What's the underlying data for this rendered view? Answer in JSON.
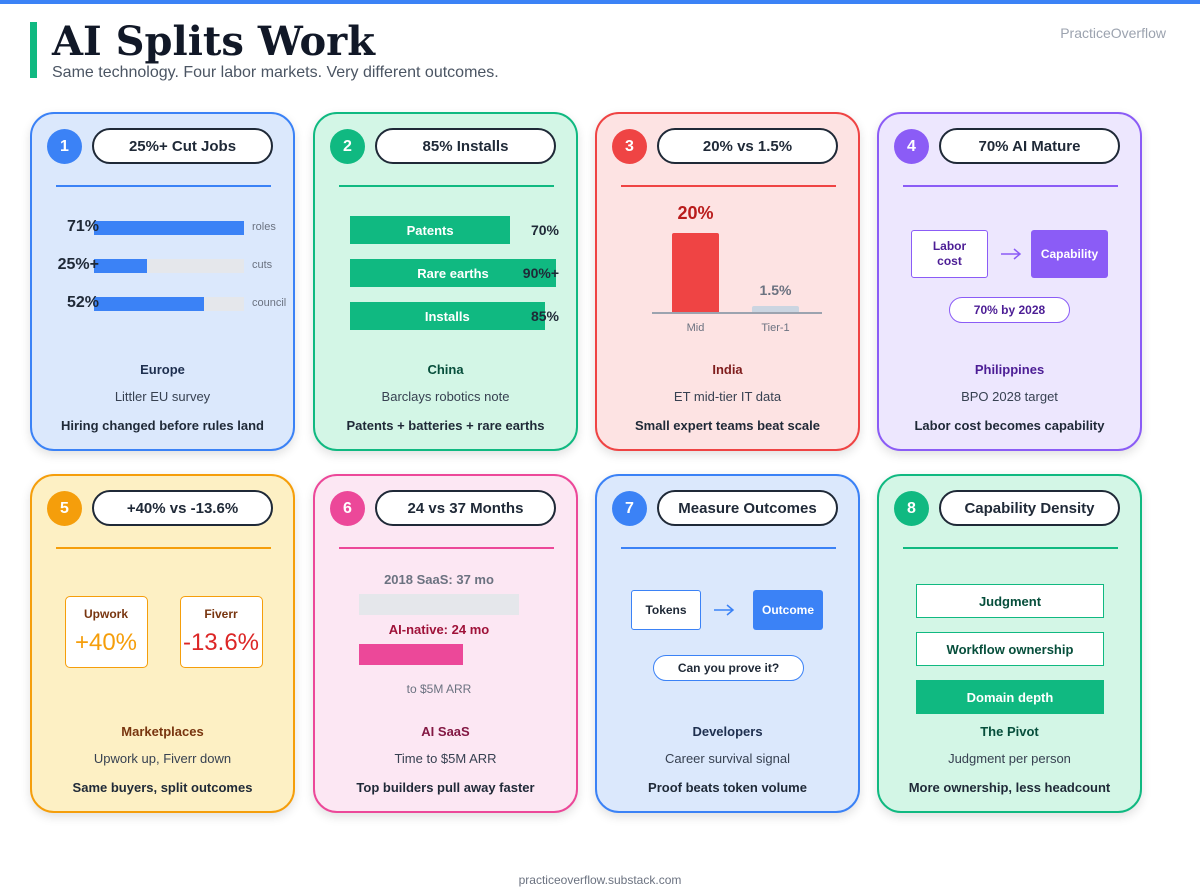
{
  "header": {
    "title": "AI Splits Work",
    "subtitle": "Same technology. Four labor markets. Very different outcomes.",
    "brand": "PracticeOverflow"
  },
  "cards": [
    {
      "number": "1",
      "badge": "25%+ Cut Jobs",
      "region": "Europe",
      "source": "Littler EU survey",
      "takeaway": "Hiring changed before rules land",
      "bars": [
        {
          "name": "roles",
          "value": 71,
          "label": "71%"
        },
        {
          "name": "cuts",
          "value": 25,
          "label": "25%+"
        },
        {
          "name": "council",
          "value": 52,
          "label": "52%"
        }
      ]
    },
    {
      "number": "2",
      "badge": "85% Installs",
      "region": "China",
      "source": "Barclays robotics note",
      "takeaway": "Patents + batteries + rare earths",
      "bars": [
        {
          "name": "Patents",
          "value": 70,
          "label": "70%"
        },
        {
          "name": "Rare earths",
          "value": 90,
          "label": "90%+"
        },
        {
          "name": "Installs",
          "value": 85,
          "label": "85%"
        }
      ]
    },
    {
      "number": "3",
      "badge": "20% vs 1.5%",
      "region": "India",
      "source": "ET mid-tier IT data",
      "takeaway": "Small expert teams beat scale",
      "bars": [
        {
          "name": "Mid",
          "value": 20,
          "label": "20%"
        },
        {
          "name": "Tier-1",
          "value": 1.5,
          "label": "1.5%"
        }
      ]
    },
    {
      "number": "4",
      "badge": "70% AI Mature",
      "region": "Philippines",
      "source": "BPO 2028 target",
      "takeaway": "Labor cost becomes capability",
      "diagram": {
        "from": "Labor cost",
        "to": "Capability",
        "note": "70% by 2028"
      }
    },
    {
      "number": "5",
      "badge": "+40% vs -13.6%",
      "region": "Marketplaces",
      "source": "Upwork up, Fiverr down",
      "takeaway": "Same buyers, split outcomes",
      "marketplaces": [
        {
          "name": "Upwork",
          "change": "+40%"
        },
        {
          "name": "Fiverr",
          "change": "-13.6%"
        }
      ]
    },
    {
      "number": "6",
      "badge": "24 vs 37 Months",
      "region": "AI SaaS",
      "source": "Time to $5M ARR",
      "takeaway": "Top builders pull away faster",
      "bars": [
        {
          "label": "2018 SaaS: 37 mo",
          "value": 37
        },
        {
          "label": "AI-native: 24 mo",
          "value": 24
        }
      ],
      "note": "to $5M ARR"
    },
    {
      "number": "7",
      "badge": "Measure Outcomes",
      "region": "Developers",
      "source": "Career survival signal",
      "takeaway": "Proof beats token volume",
      "diagram": {
        "from": "Tokens",
        "to": "Outcome",
        "note": "Can you prove it?"
      }
    },
    {
      "number": "8",
      "badge": "Capability Density",
      "region": "The Pivot",
      "source": "Judgment per person",
      "takeaway": "More ownership, less headcount",
      "items": [
        "Judgment",
        "Workflow ownership",
        "Domain depth"
      ]
    }
  ],
  "footer": "practiceoverflow.substack.com"
}
